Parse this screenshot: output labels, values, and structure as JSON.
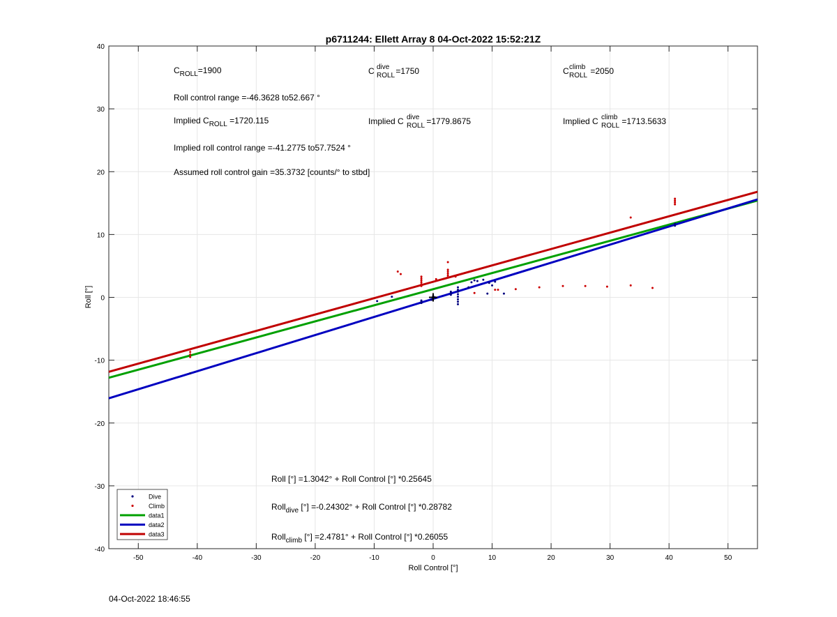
{
  "chart_data": {
    "type": "scatter",
    "title": "p6711244: Ellett Array 8 04-Oct-2022 15:52:21Z",
    "xlabel": "Roll Control [°]",
    "ylabel": "Roll [°]",
    "xlim": [
      -55,
      55
    ],
    "ylim": [
      -40,
      40
    ],
    "xticks": [
      -50,
      -40,
      -30,
      -20,
      -10,
      0,
      10,
      20,
      30,
      40,
      50
    ],
    "yticks": [
      -40,
      -30,
      -20,
      -10,
      0,
      10,
      20,
      30,
      40
    ],
    "grid": true,
    "legend_position": "bottom-left",
    "series": [
      {
        "name": "Dive",
        "kind": "points",
        "color": "#00007f",
        "points": [
          [
            -41.2,
            -12.1
          ],
          [
            -9.5,
            -0.6
          ],
          [
            -7,
            0.1
          ],
          [
            -2,
            -0.9
          ],
          [
            -2,
            -0.7
          ],
          [
            -2,
            -0.5
          ],
          [
            -0.3,
            -0.4
          ],
          [
            0,
            -0.2
          ],
          [
            0,
            0
          ],
          [
            0,
            0.2
          ],
          [
            0.3,
            0
          ],
          [
            3,
            0.4
          ],
          [
            3,
            0.7
          ],
          [
            3,
            0.9
          ],
          [
            4.2,
            -1.1
          ],
          [
            4.2,
            -0.7
          ],
          [
            4.2,
            -0.3
          ],
          [
            4.2,
            0.1
          ],
          [
            4.2,
            0.5
          ],
          [
            4.2,
            0.9
          ],
          [
            4.2,
            1.2
          ],
          [
            4.2,
            1.6
          ],
          [
            6,
            1.6
          ],
          [
            6.5,
            2.4
          ],
          [
            7,
            2.7
          ],
          [
            7.5,
            2.6
          ],
          [
            8.5,
            2.8
          ],
          [
            9.2,
            0.6
          ],
          [
            9.5,
            2.3
          ],
          [
            10,
            1.9
          ],
          [
            10.5,
            2.5
          ],
          [
            12,
            0.6
          ],
          [
            41,
            11.4
          ],
          [
            41,
            11.7
          ]
        ]
      },
      {
        "name": "Climb",
        "kind": "points",
        "color": "#cc0000",
        "points": [
          [
            -41.2,
            -8.3
          ],
          [
            -41.2,
            -8.7
          ],
          [
            -41.2,
            -9.1
          ],
          [
            -41.2,
            -9.5
          ],
          [
            -6,
            4.1
          ],
          [
            -5.5,
            3.7
          ],
          [
            -2,
            1.8
          ],
          [
            -2,
            2.1
          ],
          [
            -2,
            2.4
          ],
          [
            -2,
            2.7
          ],
          [
            -2,
            3.0
          ],
          [
            -2,
            3.3
          ],
          [
            0.5,
            2.9
          ],
          [
            2.5,
            3.2
          ],
          [
            2.5,
            3.5
          ],
          [
            2.5,
            3.8
          ],
          [
            2.5,
            4.1
          ],
          [
            2.5,
            4.4
          ],
          [
            2.5,
            5.6
          ],
          [
            3.8,
            3.3
          ],
          [
            7,
            0.7
          ],
          [
            10.5,
            1.2
          ],
          [
            11,
            1.2
          ],
          [
            14,
            1.3
          ],
          [
            18,
            1.6
          ],
          [
            22,
            1.8
          ],
          [
            25.8,
            1.8
          ],
          [
            29.5,
            1.7
          ],
          [
            33.5,
            1.9
          ],
          [
            37.2,
            1.5
          ],
          [
            33.5,
            12.7
          ],
          [
            41,
            14.8
          ],
          [
            41,
            15.1
          ],
          [
            41,
            15.4
          ],
          [
            41,
            15.7
          ]
        ]
      },
      {
        "name": "data1",
        "kind": "line",
        "color": "#00a000",
        "intercept": 1.3042,
        "slope": 0.25645
      },
      {
        "name": "data2",
        "kind": "line",
        "color": "#0000c0",
        "intercept": -0.24302,
        "slope": 0.28782
      },
      {
        "name": "data3",
        "kind": "line",
        "color": "#c00000",
        "intercept": 2.4781,
        "slope": 0.26055
      }
    ],
    "markers": [
      {
        "shape": "plus",
        "x": 0,
        "y": 0,
        "color": "#000000"
      }
    ]
  },
  "annotations": {
    "c_roll": {
      "sym": "C",
      "sub": "ROLL",
      "value": "=1900"
    },
    "c_roll_dive": {
      "sym": "C",
      "sup": "dive",
      "sub": "ROLL",
      "value": " =1750"
    },
    "c_roll_climb": {
      "sym": "C",
      "sup": "climb",
      "sub": "ROLL",
      "value": " =2050"
    },
    "roll_control_range": "Roll control range =-46.3628 to52.667 °",
    "implied_c_roll": {
      "prefix": "Implied C",
      "sub": "ROLL",
      "value": " =1720.115"
    },
    "implied_c_roll_dive": {
      "prefix": "Implied C",
      "sup": "dive",
      "sub": "ROLL",
      "value": " =1779.8675"
    },
    "implied_c_roll_climb": {
      "prefix": "Implied C",
      "sup": "climb",
      "sub": "ROLL",
      "value": " =1713.5633"
    },
    "implied_roll_range": "Implied roll control range =-41.2775 to57.7524 °",
    "gain": "Assumed roll control gain =35.3732 [counts/° to stbd]",
    "eq_all": "Roll [°] =1.3042° + Roll Control [°] *0.25645",
    "eq_dive": {
      "prefix": "Roll",
      "sub": "dive",
      "rest": " [°] =-0.24302° + Roll Control [°] *0.28782"
    },
    "eq_climb": {
      "prefix": "Roll",
      "sub": "climb",
      "rest": " [°] =2.4781° + Roll Control [°] *0.26055"
    }
  },
  "timestamp": "04-Oct-2022 18:46:55"
}
